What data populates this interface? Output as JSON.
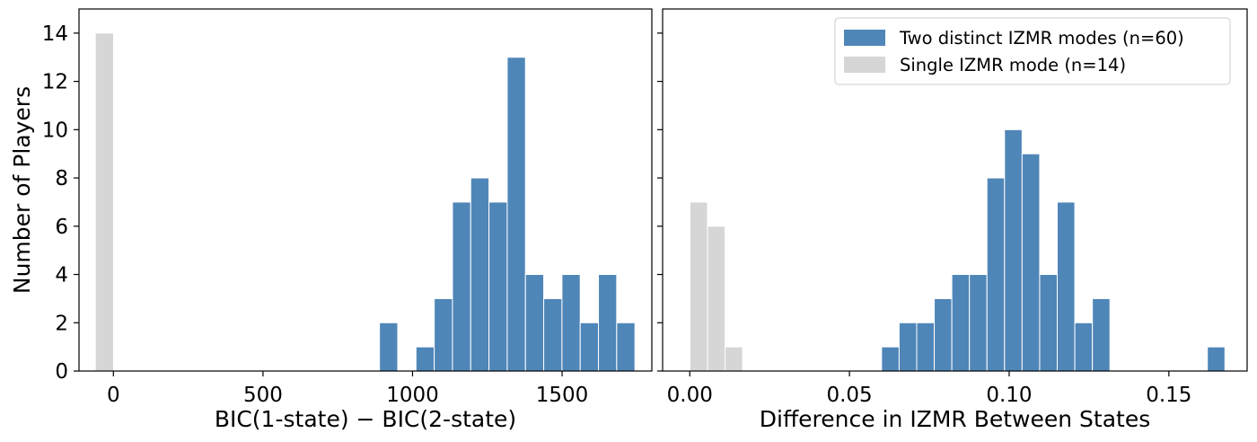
{
  "chart_data": [
    {
      "type": "bar",
      "xlabel": "BIC(1-state) − BIC(2-state)",
      "ylabel": "Number of Players",
      "xlim": [
        -115,
        1800
      ],
      "ylim": [
        0,
        15
      ],
      "xticks": [
        0,
        500,
        1000,
        1500
      ],
      "xtick_labels": [
        "0",
        "500",
        "1000",
        "1500"
      ],
      "yticks": [
        0,
        2,
        4,
        6,
        8,
        10,
        12,
        14
      ],
      "ytick_labels": [
        "0",
        "2",
        "4",
        "6",
        "8",
        "10",
        "12",
        "14"
      ],
      "grid": false,
      "series": [
        {
          "name": "Two distinct IZMR modes (n=60)",
          "color": "#4f86b8",
          "bin_width": 61,
          "x": [
            920,
            1042,
            1103,
            1164,
            1225,
            1286,
            1347,
            1408,
            1469,
            1530,
            1591,
            1652,
            1713
          ],
          "values": [
            2,
            1,
            3,
            7,
            8,
            7,
            13,
            4,
            3,
            4,
            2,
            4,
            2
          ]
        },
        {
          "name": "Single IZMR mode (n=14)",
          "color": "#d6d6d6",
          "bin_width": 61,
          "x": [
            -30
          ],
          "values": [
            14
          ]
        }
      ]
    },
    {
      "type": "bar",
      "xlabel": "Difference in IZMR Between States",
      "xlim": [
        -0.0085,
        0.1745
      ],
      "ylim": [
        0,
        15
      ],
      "xticks": [
        0.0,
        0.05,
        0.1,
        0.15
      ],
      "xtick_labels": [
        "0.00",
        "0.05",
        "0.10",
        "0.15"
      ],
      "yticks": [
        0,
        2,
        4,
        6,
        8,
        10,
        12,
        14
      ],
      "grid": false,
      "legend": "top-right",
      "series": [
        {
          "name": "Two distinct IZMR modes (n=60)",
          "color": "#4f86b8",
          "bin_width": 0.0055,
          "x": [
            0.0628,
            0.0683,
            0.0738,
            0.0793,
            0.0848,
            0.0903,
            0.0958,
            0.1013,
            0.1068,
            0.1123,
            0.1178,
            0.1233,
            0.1288,
            0.1343,
            0.1648
          ],
          "values": [
            1,
            2,
            2,
            3,
            4,
            4,
            8,
            10,
            9,
            4,
            7,
            2,
            3,
            0,
            1
          ]
        },
        {
          "name": "Single IZMR mode (n=14)",
          "color": "#d6d6d6",
          "bin_width": 0.0055,
          "x": [
            0.0028,
            0.0083,
            0.0138
          ],
          "values": [
            7,
            6,
            1
          ]
        }
      ]
    }
  ]
}
